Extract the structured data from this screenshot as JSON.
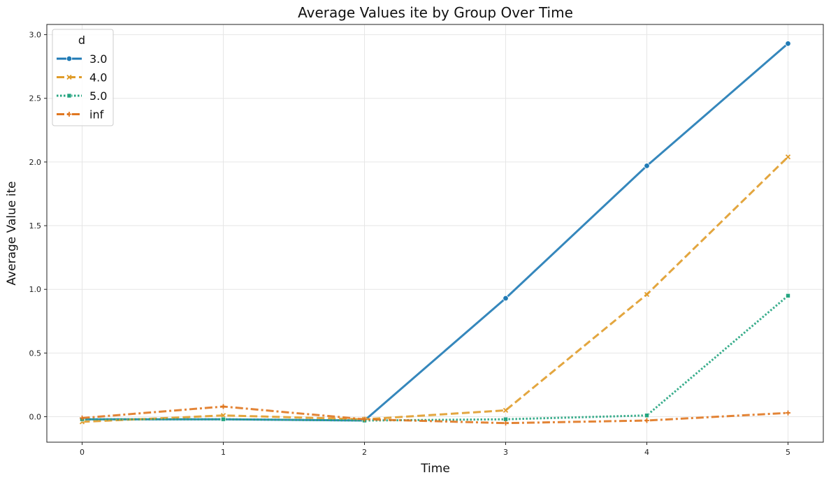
{
  "chart_data": {
    "type": "line",
    "title": "Average Values ite by Group Over Time",
    "xlabel": "Time",
    "ylabel": "Average Value ite",
    "x": [
      0,
      1,
      2,
      3,
      4,
      5
    ],
    "xticks": [
      "0",
      "1",
      "2",
      "3",
      "4",
      "5"
    ],
    "yticks": [
      "0.0",
      "0.5",
      "1.0",
      "1.5",
      "2.0",
      "2.5",
      "3.0"
    ],
    "xlim": [
      -0.25,
      5.25
    ],
    "ylim": [
      -0.2,
      3.08
    ],
    "grid": true,
    "legend": {
      "title": "d",
      "placement": "top-left"
    },
    "series": [
      {
        "name": "3.0",
        "color": "#1f7ab5",
        "style": "solid",
        "marker": "circle",
        "values": [
          -0.02,
          -0.02,
          -0.03,
          0.93,
          1.97,
          2.93
        ]
      },
      {
        "name": "4.0",
        "color": "#e09c2a",
        "style": "dashed",
        "marker": "x",
        "values": [
          -0.04,
          0.01,
          -0.02,
          0.05,
          0.96,
          2.04
        ]
      },
      {
        "name": "5.0",
        "color": "#23a47f",
        "style": "dotted",
        "marker": "square",
        "values": [
          -0.02,
          -0.02,
          -0.03,
          -0.02,
          0.01,
          0.95
        ]
      },
      {
        "name": "inf",
        "color": "#e07720",
        "style": "dashdot",
        "marker": "plus",
        "values": [
          -0.01,
          0.08,
          -0.02,
          -0.05,
          -0.03,
          0.03
        ]
      }
    ]
  }
}
